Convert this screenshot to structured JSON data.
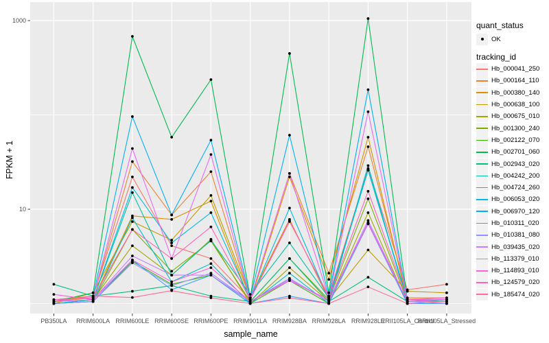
{
  "figure": {
    "background": "#FFFFFF",
    "panel_bg": "#EBEBEB",
    "grid_color": "#FFFFFF",
    "tick_color": "#333333",
    "tick_label_color": "#4D4D4D",
    "point_color": "#000000"
  },
  "axes": {
    "x_title": "sample_name",
    "y_title": "FPKM + 1",
    "y_tick_labels": [
      "1000",
      "10"
    ]
  },
  "legend": {
    "quant_status_title": "quant_status",
    "quant_status_items": [
      "OK"
    ],
    "tracking_title": "tracking_id"
  },
  "chart_data": {
    "type": "line",
    "x_type": "categorical",
    "title": "",
    "xlabel": "sample_name",
    "ylabel": "FPKM + 1",
    "y_scale": "log10",
    "ylim": [
      0.95,
      1100
    ],
    "y_ticks": [
      1000,
      10
    ],
    "y_grid_major": [
      10,
      1000
    ],
    "y_grid_minor": [
      1,
      100
    ],
    "grid": true,
    "legend_position": "right",
    "point_marker": "filled-circle",
    "categories": [
      "PB350LA",
      "RRIM600LA",
      "RRIM600LE",
      "RRIM600SE",
      "RRIM600PE",
      "RRIM901LA",
      "RRIM928BA",
      "RRIM928LA",
      "RRIM928LE",
      "RRII105LA_Control",
      "RRII105LA_Stressed"
    ],
    "series": [
      {
        "name": "Hb_000041_250",
        "color": "#F8766D",
        "values": [
          1.1,
          1.2,
          22,
          4.1,
          3.0,
          1.1,
          7.4,
          1.2,
          27,
          1.4,
          1.6
        ]
      },
      {
        "name": "Hb_000164_110",
        "color": "#EA8331",
        "values": [
          1.05,
          1.15,
          32,
          8.7,
          25,
          1.1,
          24,
          2.1,
          46,
          1.15,
          1.15
        ]
      },
      {
        "name": "Hb_000380_140",
        "color": "#D89000",
        "values": [
          1.0,
          1.1,
          8.5,
          7.8,
          12.2,
          1.05,
          22,
          1.8,
          58,
          1.05,
          1.1
        ]
      },
      {
        "name": "Hb_000638_100",
        "color": "#C09B00",
        "values": [
          1.0,
          1.3,
          7.4,
          4.7,
          14,
          1.15,
          7.8,
          1.1,
          3.7,
          1.35,
          1.3
        ]
      },
      {
        "name": "Hb_000675_010",
        "color": "#A3A500",
        "values": [
          1.0,
          1.1,
          4.1,
          2.0,
          4.8,
          1.0,
          2.4,
          1.05,
          9.2,
          1.0,
          1.0
        ]
      },
      {
        "name": "Hb_001300_240",
        "color": "#7CAE00",
        "values": [
          1.0,
          1.05,
          6.1,
          2.2,
          4.6,
          1.05,
          3.0,
          1.1,
          12.9,
          1.05,
          1.05
        ]
      },
      {
        "name": "Hb_002122_070",
        "color": "#39B600",
        "values": [
          1.0,
          1.05,
          2.8,
          1.6,
          2.0,
          1.0,
          1.75,
          1.0,
          7.2,
          1.0,
          1.0
        ]
      },
      {
        "name": "Hb_002701_060",
        "color": "#00BB4E",
        "values": [
          1.05,
          1.3,
          680,
          58,
          237,
          1.15,
          448,
          1.3,
          1050,
          1.1,
          1.05
        ]
      },
      {
        "name": "Hb_002943_020",
        "color": "#00BF7D",
        "values": [
          1.6,
          1.2,
          1.35,
          1.55,
          1.2,
          1.05,
          3.0,
          1.05,
          1.9,
          1.05,
          1.05
        ]
      },
      {
        "name": "Hb_004242_200",
        "color": "#00C1A3",
        "values": [
          1.0,
          1.1,
          15,
          2.0,
          4.7,
          1.25,
          4.4,
          1.15,
          26,
          1.1,
          1.05
        ]
      },
      {
        "name": "Hb_004724_260",
        "color": "#00BFC4",
        "values": [
          1.0,
          1.05,
          8.1,
          1.7,
          2.65,
          1.0,
          2.1,
          1.0,
          29,
          1.0,
          1.0
        ]
      },
      {
        "name": "Hb_006053_020",
        "color": "#00BAE0",
        "values": [
          1.0,
          1.1,
          17,
          4.4,
          9.2,
          1.1,
          10.3,
          1.1,
          26,
          1.05,
          1.1
        ]
      },
      {
        "name": "Hb_006970_120",
        "color": "#00B0F6",
        "values": [
          1.05,
          1.2,
          96,
          8.7,
          54,
          1.15,
          61,
          1.2,
          185,
          1.1,
          1.1
        ]
      },
      {
        "name": "Hb_010311_020",
        "color": "#35A2FF",
        "values": [
          1.0,
          1.05,
          2.9,
          1.4,
          2.0,
          1.0,
          1.2,
          1.0,
          7.0,
          1.0,
          1.0
        ]
      },
      {
        "name": "Hb_010381_080",
        "color": "#9590FF",
        "values": [
          1.0,
          1.05,
          2.7,
          1.55,
          2.1,
          1.05,
          1.85,
          1.05,
          7.2,
          1.05,
          1.0
        ]
      },
      {
        "name": "Hb_039435_020",
        "color": "#C77CFF",
        "values": [
          1.05,
          1.1,
          3.2,
          2.0,
          2.0,
          1.05,
          1.8,
          1.05,
          7.6,
          1.05,
          1.05
        ]
      },
      {
        "name": "Hb_113379_010",
        "color": "#E76BF3",
        "values": [
          1.1,
          1.15,
          44,
          3.0,
          38,
          1.1,
          24,
          1.15,
          108,
          1.1,
          1.1
        ]
      },
      {
        "name": "Hb_114893_010",
        "color": "#FA62DB",
        "values": [
          1.25,
          1.1,
          2.9,
          1.7,
          2.4,
          1.05,
          1.75,
          1.1,
          7.0,
          1.05,
          1.1
        ]
      },
      {
        "name": "Hb_124579_020",
        "color": "#FF62BC",
        "values": [
          1.1,
          1.15,
          6.1,
          3.0,
          6.5,
          1.1,
          7.6,
          1.15,
          15.5,
          1.1,
          1.15
        ]
      },
      {
        "name": "Hb_185474_020",
        "color": "#FF6A98",
        "values": [
          1.05,
          1.2,
          1.16,
          1.37,
          1.15,
          1.0,
          1.15,
          1.0,
          1.5,
          1.0,
          1.05
        ]
      }
    ]
  }
}
